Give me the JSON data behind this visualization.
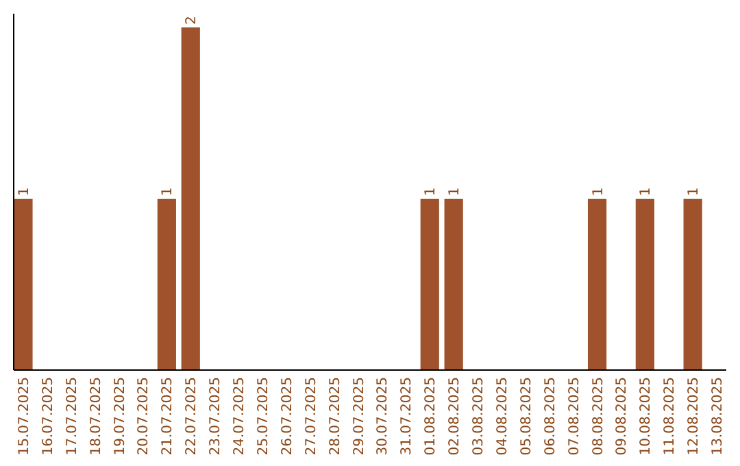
{
  "chart_data": {
    "type": "bar",
    "categories": [
      "15.07.2025",
      "16.07.2025",
      "17.07.2025",
      "18.07.2025",
      "19.07.2025",
      "20.07.2025",
      "21.07.2025",
      "22.07.2025",
      "23.07.2025",
      "24.07.2025",
      "25.07.2025",
      "26.07.2025",
      "27.07.2025",
      "28.07.2025",
      "29.07.2025",
      "30.07.2025",
      "31.07.2025",
      "01.08.2025",
      "02.08.2025",
      "03.08.2025",
      "04.08.2025",
      "05.08.2025",
      "06.08.2025",
      "07.08.2025",
      "08.08.2025",
      "09.08.2025",
      "10.08.2025",
      "11.08.2025",
      "12.08.2025",
      "13.08.2025"
    ],
    "values": [
      1,
      0,
      0,
      0,
      0,
      0,
      1,
      2,
      0,
      0,
      0,
      0,
      0,
      0,
      0,
      0,
      0,
      1,
      1,
      0,
      0,
      0,
      0,
      0,
      1,
      0,
      1,
      0,
      1,
      0
    ],
    "value_labels": [
      "1",
      null,
      null,
      null,
      null,
      null,
      "1",
      "2",
      null,
      null,
      null,
      null,
      null,
      null,
      null,
      null,
      null,
      "1",
      "1",
      null,
      null,
      null,
      null,
      null,
      "1",
      null,
      "1",
      null,
      "1",
      null
    ],
    "color": "#a0522d",
    "ylim": [
      0,
      2.08
    ],
    "tick_labels": "x"
  }
}
